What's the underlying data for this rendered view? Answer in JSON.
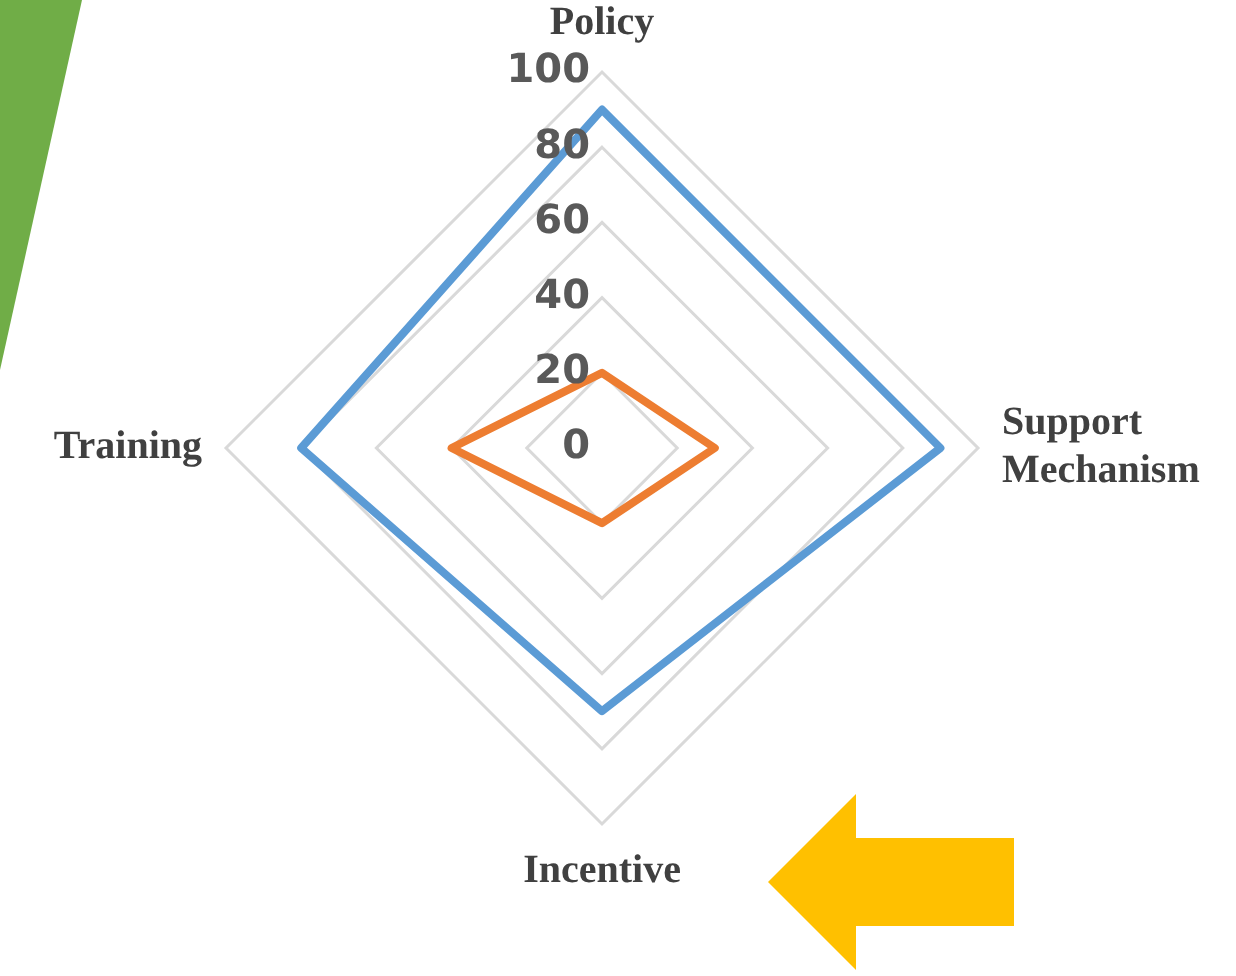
{
  "chart_data": {
    "type": "radar",
    "categories": [
      "Policy",
      "Support Mechanism",
      "Incentive",
      "Training"
    ],
    "series": [
      {
        "color": "#5b9bd5",
        "values": [
          90,
          90,
          70,
          80
        ]
      },
      {
        "color": "#ed7d31",
        "values": [
          20,
          30,
          20,
          40
        ]
      }
    ],
    "ylim": [
      0,
      100
    ],
    "yticks": [
      0,
      20,
      40,
      60,
      80,
      100
    ],
    "grid": true
  }
}
